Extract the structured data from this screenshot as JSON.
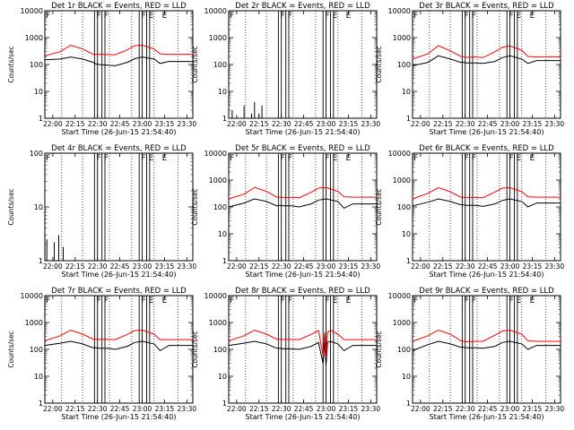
{
  "figure": {
    "x_tick_labels": [
      "22:00",
      "22:15",
      "22:30",
      "22:45",
      "23:00",
      "23:15",
      "23:30"
    ],
    "y_tick_labels": [
      "1",
      "10",
      "100",
      "1000",
      "10000"
    ],
    "ylabel": "Counts/sec",
    "xlabel": "Start Time (26-Jun-15 21:54:40)",
    "markers": [
      "F",
      "F",
      "F",
      "F",
      "E",
      "E"
    ]
  },
  "colors": {
    "events": "#000000",
    "lld": "#ff0000",
    "axes": "#000000"
  },
  "chart_data": [
    {
      "type": "line",
      "title": "Det 1r BLACK = Events, RED = LLD",
      "panel": "det-1r",
      "yscale": "log",
      "ylim": [
        1,
        10000
      ],
      "xlim": [
        "21:54:40",
        "23:34:00"
      ],
      "series": [
        {
          "x": [
            "21:54:40",
            "22:05",
            "22:12",
            "22:20",
            "22:27",
            "22:29",
            "22:31",
            "22:37",
            "22:42",
            "22:50",
            "22:55",
            "23:00",
            "23:08",
            "23:12",
            "23:18",
            "23:30",
            "23:34"
          ],
          "values": [
            150,
            160,
            190,
            160,
            120,
            105,
            100,
            95,
            90,
            120,
            165,
            190,
            160,
            110,
            130,
            130,
            130
          ]
        },
        {
          "x": [
            "21:54:40",
            "22:05",
            "22:12",
            "22:20",
            "22:27",
            "22:29",
            "22:31",
            "22:37",
            "22:42",
            "22:50",
            "22:55",
            "23:00",
            "23:08",
            "23:12",
            "23:18",
            "23:30",
            "23:34"
          ],
          "values": [
            210,
            300,
            520,
            380,
            240,
            240,
            240,
            235,
            230,
            350,
            500,
            520,
            380,
            250,
            240,
            240,
            240
          ]
        }
      ]
    },
    {
      "type": "line",
      "title": "Det 2r BLACK = Events, RED = LLD",
      "panel": "det-2r",
      "yscale": "log",
      "ylim": [
        1,
        10000
      ],
      "xlim": [
        "21:54:40",
        "23:34:00"
      ],
      "series": [
        {
          "x": [
            "21:57",
            "22:05",
            "22:10",
            "22:12",
            "22:15",
            "22:17"
          ],
          "values": [
            2,
            3,
            1.5,
            4,
            1.5,
            3
          ]
        }
      ]
    },
    {
      "type": "line",
      "title": "Det 3r BLACK = Events, RED = LLD",
      "panel": "det-3r",
      "yscale": "log",
      "ylim": [
        1,
        10000
      ],
      "xlim": [
        "21:54:40",
        "23:34:00"
      ],
      "series": [
        {
          "x": [
            "21:54:40",
            "22:05",
            "22:12",
            "22:20",
            "22:27",
            "22:29",
            "22:31",
            "22:37",
            "22:42",
            "22:50",
            "22:55",
            "23:00",
            "23:08",
            "23:12",
            "23:18",
            "23:30",
            "23:34"
          ],
          "values": [
            90,
            120,
            210,
            160,
            120,
            120,
            115,
            115,
            110,
            130,
            180,
            210,
            160,
            110,
            140,
            140,
            140
          ]
        },
        {
          "x": [
            "21:54:40",
            "22:05",
            "22:12",
            "22:20",
            "22:27",
            "22:29",
            "22:31",
            "22:37",
            "22:42",
            "22:50",
            "22:55",
            "23:00",
            "23:08",
            "23:12",
            "23:18",
            "23:30",
            "23:34"
          ],
          "values": [
            160,
            250,
            500,
            320,
            200,
            190,
            185,
            190,
            180,
            300,
            440,
            490,
            340,
            200,
            190,
            190,
            190
          ]
        }
      ]
    },
    {
      "type": "line",
      "title": "Det 4r BLACK = Events, RED = LLD",
      "panel": "det-4r",
      "yscale": "log",
      "ylim": [
        1,
        100
      ],
      "xlim": [
        "21:54:40",
        "23:34:00"
      ],
      "series": [
        {
          "x": [
            "21:56",
            "22:01",
            "22:04",
            "22:07"
          ],
          "values": [
            2.5,
            2.2,
            3,
            1.8
          ]
        }
      ]
    },
    {
      "type": "line",
      "title": "Det 5r BLACK = Events, RED = LLD",
      "panel": "det-5r",
      "yscale": "log",
      "ylim": [
        1,
        10000
      ],
      "xlim": [
        "21:54:40",
        "23:34:00"
      ],
      "series": [
        {
          "x": [
            "21:54:40",
            "22:05",
            "22:12",
            "22:20",
            "22:27",
            "22:29",
            "22:31",
            "22:37",
            "22:42",
            "22:50",
            "22:55",
            "23:00",
            "23:08",
            "23:12",
            "23:18",
            "23:30",
            "23:34"
          ],
          "values": [
            100,
            140,
            200,
            160,
            110,
            115,
            110,
            110,
            100,
            130,
            180,
            200,
            160,
            90,
            130,
            130,
            130
          ]
        },
        {
          "x": [
            "21:54:40",
            "22:05",
            "22:12",
            "22:20",
            "22:27",
            "22:29",
            "22:31",
            "22:37",
            "22:42",
            "22:50",
            "22:55",
            "23:00",
            "23:08",
            "23:12",
            "23:18",
            "23:30",
            "23:34"
          ],
          "values": [
            200,
            300,
            530,
            380,
            230,
            230,
            225,
            225,
            220,
            350,
            500,
            530,
            380,
            240,
            230,
            230,
            230
          ]
        }
      ]
    },
    {
      "type": "line",
      "title": "Det 6r BLACK = Events, RED = LLD",
      "panel": "det-6r",
      "yscale": "log",
      "ylim": [
        1,
        10000
      ],
      "xlim": [
        "21:54:40",
        "23:34:00"
      ],
      "series": [
        {
          "x": [
            "21:54:40",
            "22:05",
            "22:12",
            "22:20",
            "22:27",
            "22:29",
            "22:31",
            "22:37",
            "22:42",
            "22:50",
            "22:55",
            "23:00",
            "23:08",
            "23:12",
            "23:18",
            "23:30",
            "23:34"
          ],
          "values": [
            110,
            150,
            200,
            160,
            120,
            120,
            115,
            115,
            105,
            130,
            175,
            200,
            160,
            100,
            140,
            140,
            140
          ]
        },
        {
          "x": [
            "21:54:40",
            "22:05",
            "22:12",
            "22:20",
            "22:27",
            "22:29",
            "22:31",
            "22:37",
            "22:42",
            "22:50",
            "22:55",
            "23:00",
            "23:08",
            "23:12",
            "23:18",
            "23:30",
            "23:34"
          ],
          "values": [
            200,
            320,
            520,
            370,
            230,
            230,
            225,
            225,
            220,
            360,
            500,
            520,
            370,
            240,
            230,
            230,
            230
          ]
        }
      ]
    },
    {
      "type": "line",
      "title": "Det 7r BLACK = Events, RED = LLD",
      "panel": "det-7r",
      "yscale": "log",
      "ylim": [
        1,
        10000
      ],
      "xlim": [
        "21:54:40",
        "23:34:00"
      ],
      "series": [
        {
          "x": [
            "21:54:40",
            "22:05",
            "22:12",
            "22:20",
            "22:27",
            "22:29",
            "22:31",
            "22:37",
            "22:42",
            "22:50",
            "22:55",
            "23:00",
            "23:08",
            "23:12",
            "23:18",
            "23:30",
            "23:34"
          ],
          "values": [
            140,
            170,
            200,
            160,
            115,
            115,
            110,
            110,
            100,
            130,
            180,
            200,
            160,
            90,
            140,
            140,
            140
          ]
        },
        {
          "x": [
            "21:54:40",
            "22:05",
            "22:12",
            "22:20",
            "22:27",
            "22:29",
            "22:31",
            "22:37",
            "22:42",
            "22:50",
            "22:55",
            "23:00",
            "23:08",
            "23:12",
            "23:18",
            "23:30",
            "23:34"
          ],
          "values": [
            210,
            320,
            520,
            370,
            240,
            240,
            235,
            235,
            230,
            360,
            500,
            520,
            370,
            230,
            230,
            230,
            230
          ]
        }
      ]
    },
    {
      "type": "line",
      "title": "Det 8r BLACK = Events, RED = LLD",
      "panel": "det-8r",
      "yscale": "log",
      "ylim": [
        1,
        10000
      ],
      "xlim": [
        "21:54:40",
        "23:34:00"
      ],
      "series": [
        {
          "x": [
            "21:54:40",
            "22:05",
            "22:12",
            "22:20",
            "22:27",
            "22:29",
            "22:31",
            "22:37",
            "22:42",
            "22:50",
            "22:55",
            "22:58",
            "22:59",
            "23:00",
            "23:01",
            "23:03",
            "23:08",
            "23:12",
            "23:18",
            "23:30",
            "23:34"
          ],
          "values": [
            140,
            170,
            200,
            160,
            110,
            110,
            105,
            105,
            100,
            130,
            180,
            30,
            190,
            25,
            180,
            200,
            160,
            90,
            140,
            140,
            140
          ]
        },
        {
          "x": [
            "21:54:40",
            "22:05",
            "22:12",
            "22:20",
            "22:27",
            "22:29",
            "22:31",
            "22:37",
            "22:42",
            "22:50",
            "22:55",
            "22:58",
            "22:59",
            "23:00",
            "23:01",
            "23:03",
            "23:08",
            "23:12",
            "23:18",
            "23:30",
            "23:34"
          ],
          "values": [
            210,
            320,
            520,
            370,
            240,
            240,
            235,
            235,
            230,
            360,
            500,
            60,
            420,
            50,
            420,
            520,
            370,
            230,
            230,
            230,
            230
          ]
        }
      ]
    },
    {
      "type": "line",
      "title": "Det 9r BLACK = Events, RED = LLD",
      "panel": "det-9r",
      "yscale": "log",
      "ylim": [
        1,
        10000
      ],
      "xlim": [
        "21:54:40",
        "23:34:00"
      ],
      "series": [
        {
          "x": [
            "21:54:40",
            "22:05",
            "22:12",
            "22:20",
            "22:27",
            "22:29",
            "22:31",
            "22:37",
            "22:42",
            "22:50",
            "22:55",
            "23:00",
            "23:08",
            "23:12",
            "23:18",
            "23:30",
            "23:34"
          ],
          "values": [
            90,
            150,
            200,
            160,
            120,
            120,
            115,
            115,
            110,
            130,
            180,
            200,
            160,
            100,
            140,
            140,
            140
          ]
        },
        {
          "x": [
            "21:54:40",
            "22:05",
            "22:12",
            "22:20",
            "22:27",
            "22:29",
            "22:31",
            "22:37",
            "22:42",
            "22:50",
            "22:55",
            "23:00",
            "23:08",
            "23:12",
            "23:18",
            "23:30",
            "23:34"
          ],
          "values": [
            200,
            320,
            520,
            370,
            210,
            200,
            190,
            200,
            200,
            340,
            480,
            520,
            370,
            210,
            200,
            200,
            200
          ]
        }
      ]
    }
  ]
}
